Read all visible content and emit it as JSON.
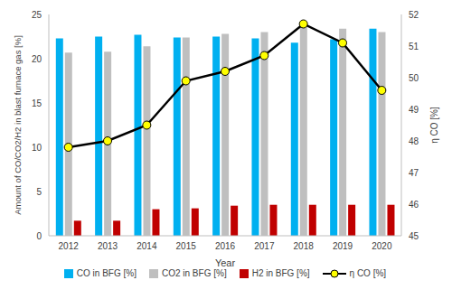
{
  "chart_data": {
    "type": "bar",
    "categories": [
      "2012",
      "2013",
      "2014",
      "2015",
      "2016",
      "2017",
      "2018",
      "2019",
      "2020"
    ],
    "x_label": "Year",
    "y_label": "Amount of CO/CO2/H2 in blast furnace gas [%]",
    "y2_label": "η CO [%]",
    "ylim": [
      0,
      25
    ],
    "yticks": [
      0,
      5,
      10,
      15,
      20,
      25
    ],
    "y2lim": [
      45,
      52
    ],
    "y2ticks": [
      45,
      46,
      47,
      48,
      49,
      50,
      51,
      52
    ],
    "grid": false,
    "legend": "bottom",
    "series": [
      {
        "name": "CO in BFG [%]",
        "type": "bar",
        "color": "#00b0f0",
        "values": [
          22.3,
          22.5,
          22.7,
          22.4,
          22.5,
          22.3,
          21.8,
          22.2,
          23.4
        ]
      },
      {
        "name": "CO2 in BFG [%]",
        "type": "bar",
        "color": "#bfbfbf",
        "values": [
          20.7,
          20.8,
          21.4,
          22.4,
          22.8,
          23.0,
          23.6,
          23.4,
          23.0
        ]
      },
      {
        "name": "H2 in BFG [%]",
        "type": "bar",
        "color": "#c00000",
        "values": [
          1.7,
          1.7,
          3.0,
          3.1,
          3.4,
          3.5,
          3.5,
          3.5,
          3.5
        ]
      },
      {
        "name": "η CO [%]",
        "type": "line",
        "axis": "y2",
        "color": "#000000",
        "marker": "circle",
        "line_style": "solid",
        "values": [
          47.8,
          48.0,
          48.5,
          49.9,
          50.2,
          50.7,
          51.7,
          51.1,
          49.6
        ]
      }
    ]
  }
}
